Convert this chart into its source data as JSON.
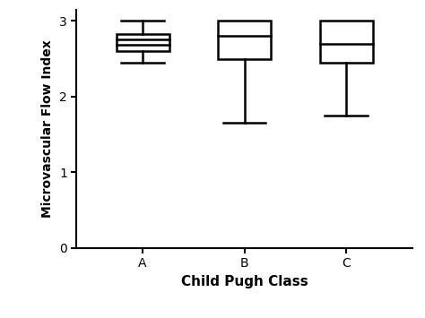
{
  "categories": [
    "A",
    "B",
    "C"
  ],
  "boxes": [
    {
      "whisker_low": 2.45,
      "q1": 2.6,
      "median1": 2.68,
      "median2": 2.76,
      "q3": 2.83,
      "whisker_high": 3.0
    },
    {
      "whisker_low": 1.65,
      "q1": 2.5,
      "median1": null,
      "median2": 2.8,
      "q3": 3.0,
      "whisker_high": 3.0
    },
    {
      "whisker_low": 1.75,
      "q1": 2.45,
      "median1": null,
      "median2": 2.7,
      "q3": 3.0,
      "whisker_high": 3.0
    }
  ],
  "ylabel": "Microvascular Flow Index",
  "xlabel": "Child Pugh Class",
  "ylim": [
    0,
    3.15
  ],
  "yticks": [
    0,
    1,
    2,
    3
  ],
  "box_width": 0.52,
  "linewidth": 1.8,
  "background_color": "#ffffff",
  "box_color": "#ffffff",
  "line_color": "#000000",
  "ylabel_fontsize": 10,
  "xlabel_fontsize": 11,
  "tick_fontsize": 10
}
